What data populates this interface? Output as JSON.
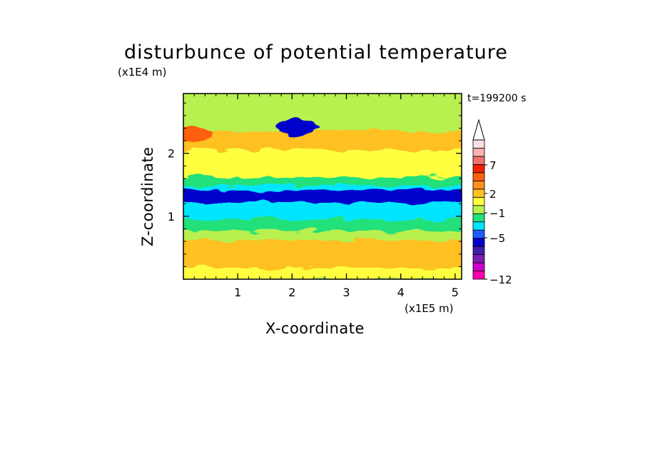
{
  "chart_data": {
    "type": "heatmap",
    "title": "disturbunce of potential temperature",
    "xlabel": "X-coordinate",
    "ylabel": "Z-coordinate",
    "x_multiplier_label": "(x1E5 m)",
    "y_multiplier_label": "(x1E4 m)",
    "annotation": "t=199200 s",
    "xlim": [
      0,
      5.12
    ],
    "ylim": [
      0,
      2.95
    ],
    "x_ticks": [
      "1",
      "2",
      "3",
      "4",
      "5"
    ],
    "y_ticks": [
      "1",
      "2"
    ],
    "colorbar": {
      "extend": "max",
      "tick_labels": [
        "7",
        "2",
        "−1",
        "−5",
        "−12"
      ],
      "colors": [
        "#ff00aa",
        "#cc00cc",
        "#7a1fb0",
        "#3f1fa8",
        "#0000cc",
        "#1e5aff",
        "#00e5ff",
        "#22e07a",
        "#b8f050",
        "#ffff40",
        "#ffc020",
        "#ff9020",
        "#ff6010",
        "#f02000",
        "#f07070",
        "#ffb0b0",
        "#ffe0e0"
      ]
    },
    "bands": [
      {
        "z_range": [
          0.0,
          0.18
        ],
        "value_class": "0 to 2",
        "color": "#ffff40"
      },
      {
        "z_range": [
          0.18,
          0.62
        ],
        "value_class": "2 to 3",
        "color": "#ffc020"
      },
      {
        "z_range": [
          0.62,
          0.77
        ],
        "value_class": "0 to 1",
        "color": "#b8f050"
      },
      {
        "z_range": [
          0.77,
          0.95
        ],
        "value_class": "-1 to 0",
        "color": "#22e07a"
      },
      {
        "z_range": [
          0.95,
          1.48
        ],
        "value_class": "-2 to -1",
        "color": "#00e5ff"
      },
      {
        "z_range": [
          1.22,
          1.42
        ],
        "value_class": "-4 to -3",
        "color": "#0000cc"
      },
      {
        "z_range": [
          1.48,
          1.62
        ],
        "value_class": "-1 to 0",
        "color": "#22e07a"
      },
      {
        "z_range": [
          1.62,
          2.05
        ],
        "value_class": "0 to 2",
        "color": "#ffff40"
      },
      {
        "z_range": [
          2.05,
          2.35
        ],
        "value_class": "1 to 3",
        "color": "#ffc020"
      },
      {
        "z_range": [
          2.35,
          2.95
        ],
        "value_class": "0 to 1",
        "color": "#b8f050"
      }
    ],
    "features": [
      {
        "type": "blob",
        "x": 2.1,
        "z": 2.42,
        "value_class": "-4 to -3",
        "color": "#0000cc"
      },
      {
        "type": "blob",
        "x": 4.7,
        "z": 1.33,
        "value_class": "-4 to -3",
        "color": "#0000cc"
      },
      {
        "type": "blob",
        "x": 0.15,
        "z": 2.3,
        "value_class": "3 to 5",
        "color": "#ff6010"
      }
    ]
  }
}
